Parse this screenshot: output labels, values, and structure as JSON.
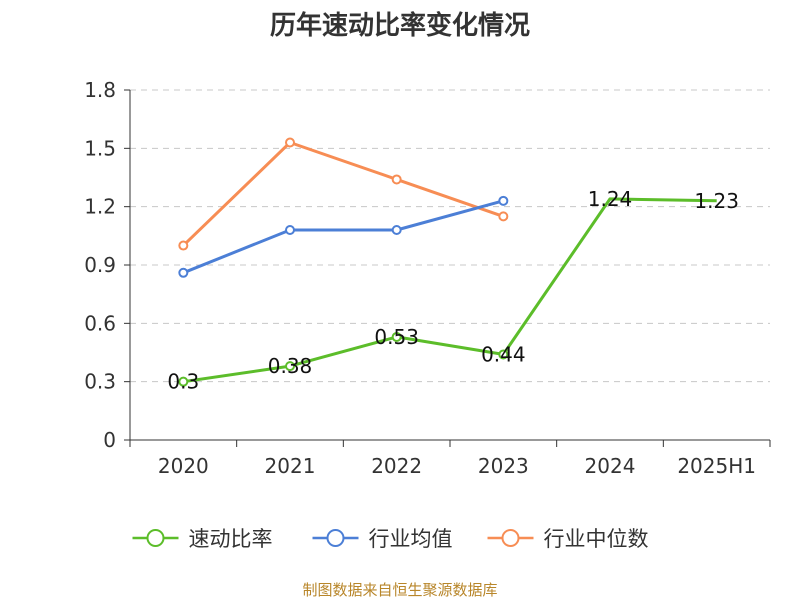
{
  "chart_data": {
    "type": "line",
    "title": "历年速动比率变化情况",
    "categories": [
      "2020",
      "2021",
      "2022",
      "2023",
      "2024",
      "2025H1"
    ],
    "ylim": [
      0,
      1.8
    ],
    "yticks": [
      "0",
      "0.3",
      "0.6",
      "0.9",
      "1.2",
      "1.5",
      "1.8"
    ],
    "grid": true,
    "legend_position": "bottom",
    "series": [
      {
        "name": "速动比率",
        "color": "#5cbd2a",
        "values": [
          0.3,
          0.38,
          0.53,
          0.44,
          1.24,
          1.23
        ],
        "labels": [
          "0.3",
          "0.38",
          "0.53",
          "0.44",
          "1.24",
          "1.23"
        ],
        "show_labels": true,
        "markers": [
          true,
          true,
          true,
          true,
          false,
          false
        ]
      },
      {
        "name": "行业均值",
        "color": "#4c7fd6",
        "values": [
          0.86,
          1.08,
          1.08,
          1.23,
          null,
          null
        ],
        "show_labels": false,
        "markers": [
          true,
          true,
          true,
          true,
          false,
          false
        ]
      },
      {
        "name": "行业中位数",
        "color": "#f78d54",
        "values": [
          1.0,
          1.53,
          1.34,
          1.15,
          null,
          null
        ],
        "show_labels": false,
        "markers": [
          true,
          true,
          true,
          true,
          false,
          false
        ]
      }
    ]
  },
  "footer": {
    "source": "制图数据来自恒生聚源数据库"
  }
}
